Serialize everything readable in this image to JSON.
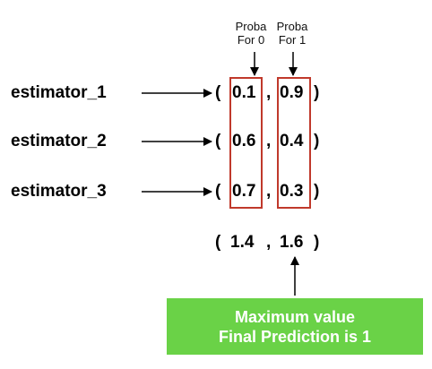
{
  "headers": [
    {
      "line1": "Proba",
      "line2": "For 0"
    },
    {
      "line1": "Proba",
      "line2": "For 1"
    }
  ],
  "rows": [
    {
      "estimator": "estimator_1",
      "p0": "0.1",
      "p1": "0.9"
    },
    {
      "estimator": "estimator_2",
      "p0": "0.6",
      "p1": "0.4"
    },
    {
      "estimator": "estimator_3",
      "p0": "0.7",
      "p1": "0.3"
    }
  ],
  "sum": {
    "p0": "1.4",
    "p1": "1.6"
  },
  "result": {
    "line1": "Maximum value",
    "line2": "Final Prediction is 1"
  },
  "colors": {
    "highlight": "#c0392b",
    "result_bg": "#6ad247"
  }
}
